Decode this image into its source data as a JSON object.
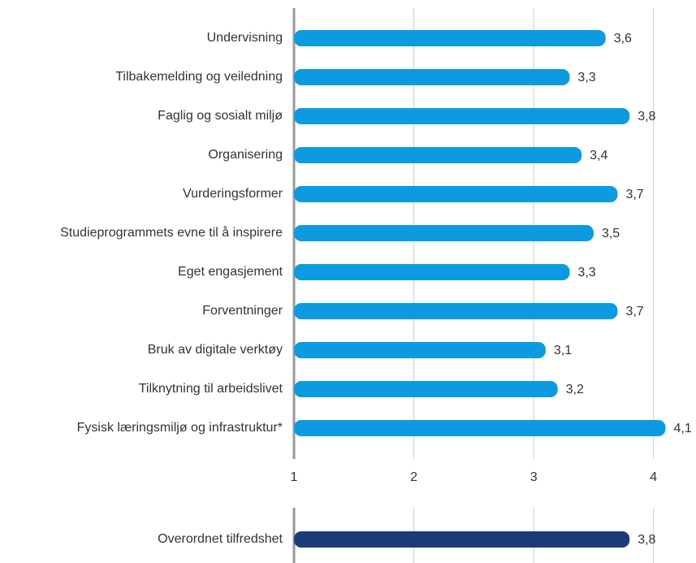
{
  "chart_data": [
    {
      "type": "bar",
      "categories": [
        "Undervisning",
        "Tilbakemelding og veiledning",
        "Faglig og sosialt miljø",
        "Organisering",
        "Vurderingsformer",
        "Studieprogrammets evne til å inspirere",
        "Eget engasjement",
        "Forventninger",
        "Bruk av digitale verktøy",
        "Tilknytning til arbeidslivet",
        "Fysisk læringsmiljø og infrastruktur*"
      ],
      "values": [
        3.6,
        3.3,
        3.8,
        3.4,
        3.7,
        3.5,
        3.3,
        3.7,
        3.1,
        3.2,
        4.1
      ],
      "value_labels": [
        "3,6",
        "3,3",
        "3,8",
        "3,4",
        "3,7",
        "3,5",
        "3,3",
        "3,7",
        "3,1",
        "3,2",
        "4,1"
      ],
      "color": "#0c9be1",
      "xlim": [
        1,
        4.3
      ],
      "xticks": [
        1,
        2,
        3,
        4
      ],
      "grid": true
    },
    {
      "type": "bar",
      "categories": [
        "Overordnet tilfredshet"
      ],
      "values": [
        3.8
      ],
      "value_labels": [
        "3,8"
      ],
      "color": "#1b3c78",
      "xlim": [
        1,
        4.3
      ],
      "xticks": [
        1,
        2,
        3,
        4
      ],
      "grid": true
    }
  ]
}
